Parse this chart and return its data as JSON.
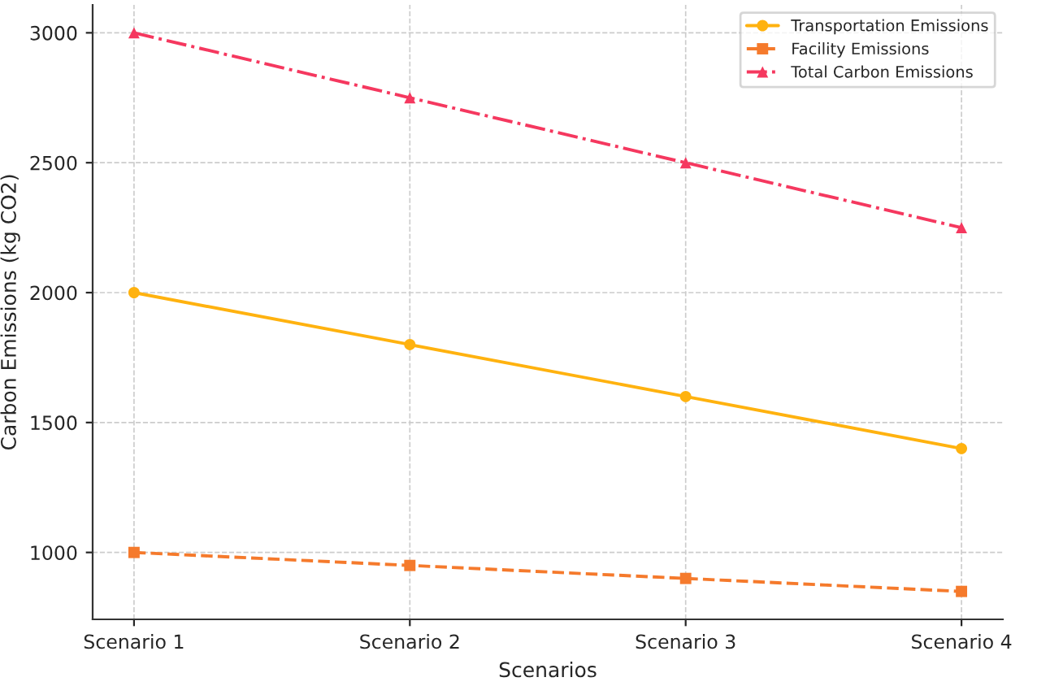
{
  "chart_data": {
    "type": "line",
    "xlabel": "Scenarios",
    "ylabel": "Carbon Emissions (kg CO2)",
    "categories": [
      "Scenario 1",
      "Scenario 2",
      "Scenario 3",
      "Scenario 4"
    ],
    "series": [
      {
        "name": "Transportation Emissions",
        "color": "#ffb20f",
        "values": [
          2000,
          1800,
          1600,
          1400
        ],
        "marker": "circle",
        "line_style": "solid"
      },
      {
        "name": "Facility Emissions",
        "color": "#f57a2c",
        "values": [
          1000,
          950,
          900,
          850
        ],
        "marker": "square",
        "line_style": "dashed"
      },
      {
        "name": "Total Carbon Emissions",
        "color": "#f5385f",
        "values": [
          3000,
          2750,
          2500,
          2250
        ],
        "marker": "triangle",
        "line_style": "dashdot"
      }
    ],
    "ylim": [
      742.5,
      3107.5
    ],
    "yticks": [
      1000,
      1500,
      2000,
      2500,
      3000
    ],
    "grid": true,
    "legend": "top right"
  }
}
